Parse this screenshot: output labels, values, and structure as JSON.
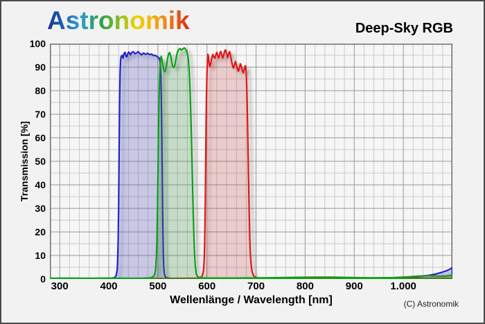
{
  "header": {
    "logo_text": "Astronomik",
    "title": "Deep-Sky RGB"
  },
  "footer": {
    "copyright": "(C) Astronomik"
  },
  "colors": {
    "figure_background": "#f2f2f2",
    "plot_background": "#f6f6f6",
    "minor_grid": "#c9c9c9",
    "major_grid": "#979797",
    "plot_border": "#6e6e6e",
    "blue_filter": "#2222cc",
    "green_filter": "#0aa018",
    "red_filter": "#e01212"
  },
  "chart_data": {
    "type": "area",
    "title": "Deep-Sky RGB",
    "xlabel": "Wellenlänge / Wavelength [nm]",
    "ylabel": "Transmission [%]",
    "grid": true,
    "legend_position": "none",
    "x_axis": {
      "min": 280,
      "max": 1100,
      "minor_step": 20,
      "major_step": 100,
      "ticks": [
        {
          "value": 300,
          "label": "300"
        },
        {
          "value": 400,
          "label": "400"
        },
        {
          "value": 500,
          "label": "500"
        },
        {
          "value": 600,
          "label": "600"
        },
        {
          "value": 700,
          "label": "700"
        },
        {
          "value": 800,
          "label": "800"
        },
        {
          "value": 900,
          "label": "900"
        },
        {
          "value": 1000,
          "label": "1.000"
        }
      ]
    },
    "y_axis": {
      "min": 0,
      "max": 100,
      "minor_step": 5,
      "major_step": 10,
      "ticks": [
        {
          "value": 0,
          "label": "0"
        },
        {
          "value": 10,
          "label": "10"
        },
        {
          "value": 20,
          "label": "20"
        },
        {
          "value": 30,
          "label": "30"
        },
        {
          "value": 40,
          "label": "40"
        },
        {
          "value": 50,
          "label": "50"
        },
        {
          "value": 60,
          "label": "60"
        },
        {
          "value": 70,
          "label": "70"
        },
        {
          "value": 80,
          "label": "80"
        },
        {
          "value": 90,
          "label": "90"
        },
        {
          "value": 100,
          "label": "100"
        }
      ]
    },
    "series": [
      {
        "name": "blue-filter",
        "passband_nm": "420-510",
        "stroke": "#2222cc",
        "fill": "rgba(70,70,200,0.20)",
        "points": [
          [
            280,
            0.2
          ],
          [
            300,
            0.3
          ],
          [
            340,
            0.2
          ],
          [
            380,
            0.3
          ],
          [
            405,
            0.3
          ],
          [
            412,
            0.6
          ],
          [
            415,
            1.5
          ],
          [
            417,
            4
          ],
          [
            418,
            8
          ],
          [
            419,
            16
          ],
          [
            420,
            30
          ],
          [
            421,
            52
          ],
          [
            422,
            74
          ],
          [
            423,
            87
          ],
          [
            424,
            92.5
          ],
          [
            425,
            94.5
          ],
          [
            427,
            95
          ],
          [
            429,
            93.8
          ],
          [
            431,
            95.8
          ],
          [
            433,
            96.3
          ],
          [
            435,
            94.6
          ],
          [
            437,
            94.4
          ],
          [
            439,
            96
          ],
          [
            441,
            96.4
          ],
          [
            444,
            95.2
          ],
          [
            447,
            96.3
          ],
          [
            450,
            96.6
          ],
          [
            453,
            95.7
          ],
          [
            457,
            96.1
          ],
          [
            460,
            96.6
          ],
          [
            463,
            95.8
          ],
          [
            467,
            95.3
          ],
          [
            471,
            96
          ],
          [
            475,
            95.4
          ],
          [
            479,
            95.9
          ],
          [
            483,
            95.3
          ],
          [
            487,
            95.6
          ],
          [
            491,
            94.9
          ],
          [
            495,
            95
          ],
          [
            499,
            94.4
          ],
          [
            502,
            94
          ],
          [
            504,
            93
          ],
          [
            505,
            91.5
          ],
          [
            506,
            87
          ],
          [
            507,
            78
          ],
          [
            508,
            62
          ],
          [
            509,
            42
          ],
          [
            510,
            24
          ],
          [
            511,
            11
          ],
          [
            512,
            5
          ],
          [
            513,
            2.5
          ],
          [
            515,
            1
          ],
          [
            518,
            0.5
          ],
          [
            525,
            0.3
          ],
          [
            560,
            0.2
          ],
          [
            600,
            0.2
          ],
          [
            650,
            0.2
          ],
          [
            700,
            0.2
          ],
          [
            750,
            0.25
          ],
          [
            800,
            0.3
          ],
          [
            850,
            0.3
          ],
          [
            900,
            0.35
          ],
          [
            950,
            0.4
          ],
          [
            990,
            0.5
          ],
          [
            1010,
            0.7
          ],
          [
            1030,
            1
          ],
          [
            1050,
            1.5
          ],
          [
            1065,
            2.1
          ],
          [
            1078,
            2.8
          ],
          [
            1088,
            3.5
          ],
          [
            1095,
            4.2
          ],
          [
            1100,
            4.8
          ]
        ]
      },
      {
        "name": "red-filter",
        "passband_nm": "600-685",
        "stroke": "#e01212",
        "fill": "rgba(220,30,30,0.16)",
        "points": [
          [
            280,
            0.2
          ],
          [
            330,
            0.25
          ],
          [
            380,
            0.2
          ],
          [
            430,
            0.25
          ],
          [
            480,
            0.2
          ],
          [
            530,
            0.25
          ],
          [
            560,
            0.3
          ],
          [
            580,
            0.35
          ],
          [
            586,
            0.5
          ],
          [
            589,
            0.9
          ],
          [
            591,
            1.8
          ],
          [
            593,
            4
          ],
          [
            594,
            7
          ],
          [
            595,
            13
          ],
          [
            596,
            24
          ],
          [
            597,
            42
          ],
          [
            598,
            62
          ],
          [
            599,
            78
          ],
          [
            600,
            87.5
          ],
          [
            601,
            92.5
          ],
          [
            602,
            95.5
          ],
          [
            603,
            94.5
          ],
          [
            604,
            92.5
          ],
          [
            605,
            90.8
          ],
          [
            606,
            90.2
          ],
          [
            608,
            91.8
          ],
          [
            610,
            94
          ],
          [
            612,
            95.4
          ],
          [
            614,
            94.3
          ],
          [
            616,
            93.7
          ],
          [
            618,
            95.3
          ],
          [
            620,
            96.3
          ],
          [
            622,
            94.7
          ],
          [
            624,
            93.9
          ],
          [
            626,
            95.6
          ],
          [
            628,
            96.7
          ],
          [
            630,
            95.3
          ],
          [
            632,
            93.9
          ],
          [
            634,
            95.1
          ],
          [
            636,
            96.9
          ],
          [
            638,
            97.3
          ],
          [
            640,
            95.6
          ],
          [
            642,
            94.1
          ],
          [
            644,
            95.6
          ],
          [
            646,
            96.6
          ],
          [
            648,
            95.1
          ],
          [
            650,
            92.6
          ],
          [
            652,
            90.6
          ],
          [
            654,
            89.6
          ],
          [
            656,
            91.1
          ],
          [
            658,
            92.4
          ],
          [
            660,
            91
          ],
          [
            662,
            89.2
          ],
          [
            664,
            88.2
          ],
          [
            666,
            89.6
          ],
          [
            668,
            91.4
          ],
          [
            670,
            90.4
          ],
          [
            672,
            88.6
          ],
          [
            674,
            87.6
          ],
          [
            676,
            89.2
          ],
          [
            678,
            90.6
          ],
          [
            679,
            90.2
          ],
          [
            680,
            87.5
          ],
          [
            681,
            82
          ],
          [
            682,
            74
          ],
          [
            683,
            63
          ],
          [
            684,
            51
          ],
          [
            685,
            39
          ],
          [
            686,
            28
          ],
          [
            687,
            19
          ],
          [
            688,
            12
          ],
          [
            690,
            6
          ],
          [
            692,
            3
          ],
          [
            695,
            1.4
          ],
          [
            698,
            0.8
          ],
          [
            702,
            0.5
          ],
          [
            710,
            0.35
          ],
          [
            750,
            0.3
          ],
          [
            800,
            0.3
          ],
          [
            850,
            0.3
          ],
          [
            900,
            0.3
          ],
          [
            950,
            0.3
          ],
          [
            1000,
            0.3
          ],
          [
            1050,
            0.3
          ],
          [
            1100,
            0.3
          ]
        ]
      },
      {
        "name": "green-filter",
        "passband_nm": "500-578",
        "stroke": "#0aa018",
        "fill": "rgba(20,150,40,0.18)",
        "points": [
          [
            280,
            0.3
          ],
          [
            320,
            0.35
          ],
          [
            360,
            0.3
          ],
          [
            400,
            0.35
          ],
          [
            440,
            0.3
          ],
          [
            470,
            0.35
          ],
          [
            485,
            0.5
          ],
          [
            490,
            0.9
          ],
          [
            493,
            1.8
          ],
          [
            495,
            3.5
          ],
          [
            496,
            6
          ],
          [
            497,
            10
          ],
          [
            498,
            17
          ],
          [
            499,
            28
          ],
          [
            500,
            42
          ],
          [
            501,
            58
          ],
          [
            502,
            72
          ],
          [
            503,
            82
          ],
          [
            504,
            88
          ],
          [
            505,
            92
          ],
          [
            506,
            94
          ],
          [
            507,
            94.6
          ],
          [
            508,
            93.5
          ],
          [
            510,
            91
          ],
          [
            512,
            88.8
          ],
          [
            514,
            88
          ],
          [
            516,
            89
          ],
          [
            518,
            91.5
          ],
          [
            520,
            94
          ],
          [
            522,
            95.8
          ],
          [
            524,
            96.2
          ],
          [
            526,
            94.8
          ],
          [
            528,
            92.5
          ],
          [
            530,
            90.5
          ],
          [
            532,
            89.8
          ],
          [
            534,
            90.6
          ],
          [
            536,
            92.5
          ],
          [
            538,
            94.8
          ],
          [
            540,
            96.5
          ],
          [
            542,
            97.4
          ],
          [
            545,
            97.9
          ],
          [
            548,
            97.3
          ],
          [
            551,
            97.8
          ],
          [
            554,
            98.2
          ],
          [
            556,
            97.8
          ],
          [
            558,
            97
          ],
          [
            560,
            95.8
          ],
          [
            562,
            93.5
          ],
          [
            564,
            88
          ],
          [
            566,
            78
          ],
          [
            568,
            63
          ],
          [
            570,
            45
          ],
          [
            572,
            28
          ],
          [
            574,
            14
          ],
          [
            576,
            6
          ],
          [
            578,
            2.5
          ],
          [
            580,
            1.2
          ],
          [
            584,
            0.7
          ],
          [
            590,
            0.5
          ],
          [
            600,
            0.45
          ],
          [
            650,
            0.4
          ],
          [
            700,
            0.45
          ],
          [
            740,
            0.55
          ],
          [
            780,
            0.7
          ],
          [
            820,
            0.8
          ],
          [
            860,
            0.75
          ],
          [
            900,
            0.6
          ],
          [
            940,
            0.5
          ],
          [
            980,
            0.6
          ],
          [
            1010,
            0.9
          ],
          [
            1030,
            1.2
          ],
          [
            1050,
            1.4
          ],
          [
            1070,
            1.3
          ],
          [
            1085,
            1.2
          ],
          [
            1100,
            1.6
          ]
        ]
      }
    ]
  }
}
